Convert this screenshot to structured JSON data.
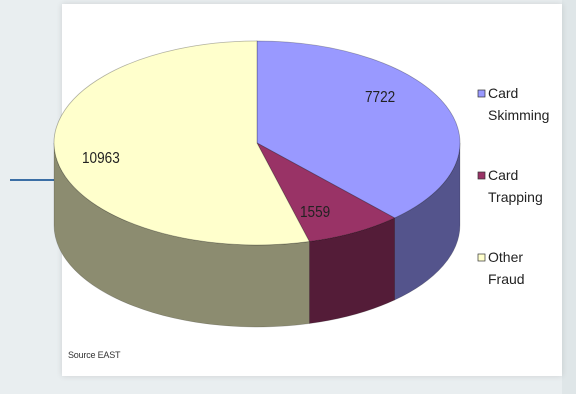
{
  "source_note": "Source EAST",
  "chart_data": {
    "type": "pie",
    "title": "",
    "categories": [
      "Card Skimming",
      "Card Trapping",
      "Other Fraud"
    ],
    "values": [
      7722,
      1559,
      10963
    ],
    "data_labels": [
      "7722",
      "1559",
      "10963"
    ],
    "colors": {
      "Card Skimming": "#9999ff",
      "Card Trapping": "#993366",
      "Other Fraud": "#ffffcc"
    },
    "legend_position": "right",
    "legend": [
      {
        "line1": "Card",
        "line2": "Skimming",
        "color": "#9999ff"
      },
      {
        "line1": "Card",
        "line2": "Trapping",
        "color": "#993366"
      },
      {
        "line1": "Other",
        "line2": "Fraud",
        "color": "#ffffcc"
      }
    ],
    "style": "3d"
  }
}
